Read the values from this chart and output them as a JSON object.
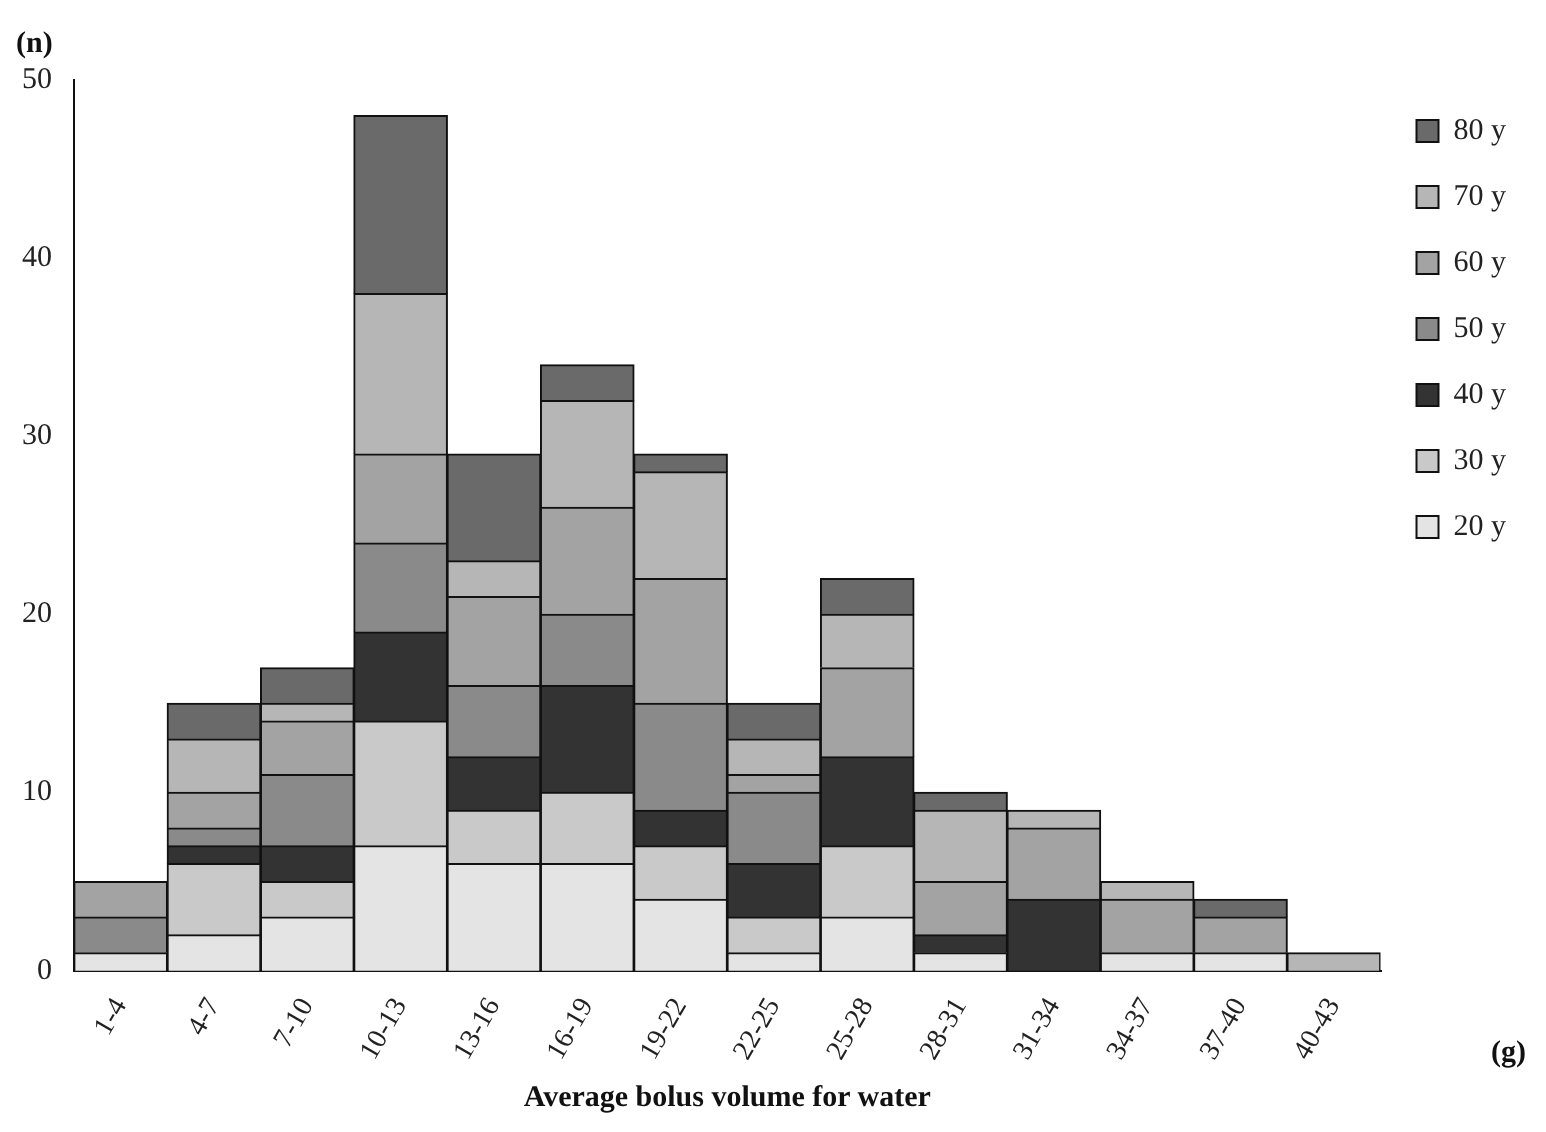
{
  "chart_data": {
    "type": "bar",
    "stacked": true,
    "xlabel": "Average bolus volume for water",
    "ylabel": "(n)",
    "annotations": [
      "(g)"
    ],
    "categories": [
      "1-4",
      "4-7",
      "7-10",
      "10-13",
      "13-16",
      "16-19",
      "19-22",
      "22-25",
      "25-28",
      "28-31",
      "31-34",
      "34-37",
      "37-40",
      "40-43"
    ],
    "series": [
      {
        "name": "20 y",
        "color": "#e4e4e4",
        "values": [
          1,
          2,
          3,
          7,
          6,
          6,
          4,
          1,
          3,
          1,
          0,
          1,
          1,
          0
        ]
      },
      {
        "name": "30 y",
        "color": "#c9c9c9",
        "values": [
          0,
          4,
          2,
          7,
          3,
          4,
          3,
          2,
          4,
          0,
          0,
          0,
          0,
          0
        ]
      },
      {
        "name": "40 y",
        "color": "#333333",
        "values": [
          0,
          1,
          2,
          5,
          3,
          6,
          2,
          3,
          5,
          1,
          4,
          0,
          0,
          0
        ]
      },
      {
        "name": "50 y",
        "color": "#8a8a8a",
        "values": [
          2,
          1,
          4,
          5,
          4,
          4,
          6,
          4,
          0,
          0,
          0,
          0,
          0,
          0
        ]
      },
      {
        "name": "60 y",
        "color": "#a3a3a3",
        "values": [
          2,
          2,
          3,
          5,
          5,
          6,
          7,
          1,
          5,
          3,
          4,
          3,
          2,
          0
        ]
      },
      {
        "name": "70 y",
        "color": "#b6b6b6",
        "values": [
          0,
          3,
          1,
          9,
          2,
          6,
          6,
          2,
          3,
          4,
          1,
          1,
          0,
          1
        ]
      },
      {
        "name": "80 y",
        "color": "#6a6a6a",
        "values": [
          0,
          2,
          2,
          10,
          6,
          2,
          1,
          2,
          2,
          1,
          0,
          0,
          1,
          0
        ]
      }
    ],
    "ylim": [
      0,
      50
    ],
    "yticks": [
      0,
      10,
      20,
      30,
      40,
      50
    ],
    "grid": false,
    "legend": "top right"
  }
}
